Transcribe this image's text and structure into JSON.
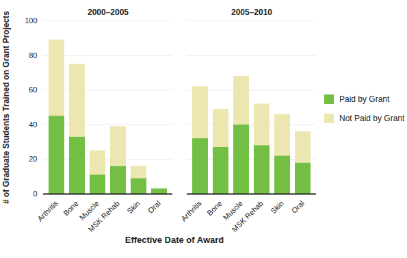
{
  "chart_data": {
    "type": "bar",
    "stacked": true,
    "grid": true,
    "legend": "right",
    "ylabel": "# of Graduate Students Trained on Grant Projects",
    "xlabel": "Effective Date of Award",
    "ylim": [
      0,
      100
    ],
    "yticks": [
      0,
      20,
      40,
      60,
      80,
      100
    ],
    "panels": [
      {
        "title": "2000–2005",
        "categories": [
          "Arthritis",
          "Bone",
          "Muscle",
          "MSK Rehab",
          "Skin",
          "Oral"
        ],
        "series": [
          {
            "name": "Paid by Grant",
            "color": "#72bf44",
            "values": [
              45,
              33,
              11,
              16,
              9,
              3
            ]
          },
          {
            "name": "Not Paid by Grant",
            "color": "#ece6b0",
            "values": [
              44,
              42,
              14,
              23,
              7,
              0
            ]
          }
        ]
      },
      {
        "title": "2005–2010",
        "categories": [
          "Arthritis",
          "Bone",
          "Muscle",
          "MSK Rehab",
          "Skin",
          "Oral"
        ],
        "series": [
          {
            "name": "Paid by Grant",
            "color": "#72bf44",
            "values": [
              32,
              27,
              40,
              28,
              22,
              18
            ]
          },
          {
            "name": "Not Paid by Grant",
            "color": "#ece6b0",
            "values": [
              30,
              22,
              28,
              24,
              24,
              18
            ]
          }
        ]
      }
    ]
  }
}
